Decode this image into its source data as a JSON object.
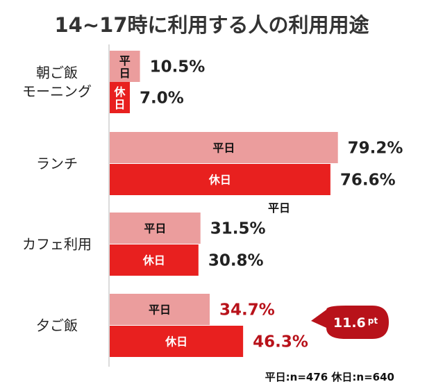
{
  "chart_data": {
    "type": "bar",
    "orientation": "horizontal",
    "title": "14~17時に利用する人の利用用途",
    "categories": [
      [
        "朝ご飯",
        "モーニング"
      ],
      [
        "ランチ"
      ],
      [
        "カフェ利用"
      ],
      [
        "夕ご飯"
      ]
    ],
    "series": [
      {
        "name": "平日",
        "values": [
          10.5,
          79.2,
          31.5,
          34.7
        ],
        "color": "#eb9d9d"
      },
      {
        "name": "休日",
        "values": [
          7.0,
          76.6,
          30.8,
          46.3
        ],
        "color": "#e8201f"
      }
    ],
    "value_labels": [
      [
        "10.5%",
        "79.2%",
        "31.5%",
        "34.7%"
      ],
      [
        "7.0%",
        "76.6%",
        "30.8%",
        "46.3%"
      ]
    ],
    "bar_labels": [
      [
        "平\n日",
        "平日",
        "平日",
        "平日"
      ],
      [
        "休\n日",
        "休日",
        "休日",
        "休日"
      ]
    ],
    "stray_label": "平日",
    "highlight_color": "#b8121a",
    "callout": {
      "value": "11.6",
      "unit": "pt",
      "color": "#b8121a"
    },
    "xlim": [
      0,
      100
    ],
    "grid": false,
    "footnote": "平日:n=476 休日:n=640"
  }
}
